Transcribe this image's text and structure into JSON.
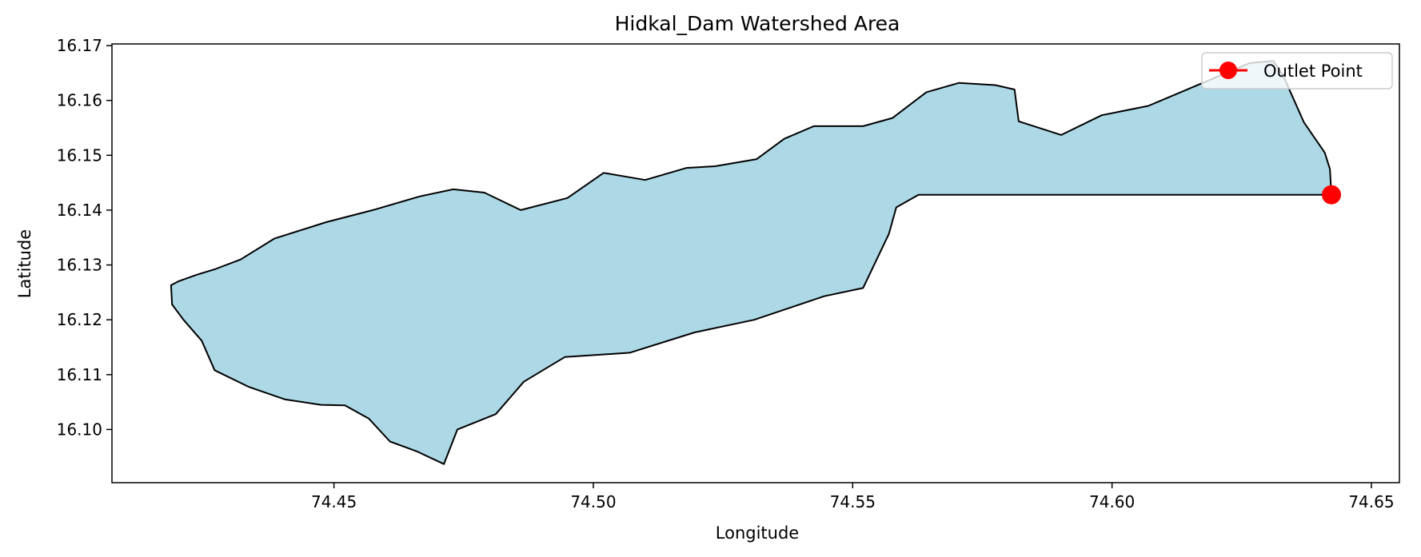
{
  "chart_data": {
    "type": "map",
    "title": "Hidkal_Dam Watershed Area",
    "xlabel": "Longitude",
    "ylabel": "Latitude",
    "xlim": [
      74.4072,
      74.6554
    ],
    "ylim": [
      16.0903,
      16.1703
    ],
    "grid": false,
    "legend_position": "top-right",
    "x_ticks": [
      "74.45",
      "74.50",
      "74.55",
      "74.60",
      "74.65"
    ],
    "x_tick_values": [
      74.45,
      74.5,
      74.55,
      74.6,
      74.65
    ],
    "y_ticks": [
      "16.10",
      "16.11",
      "16.12",
      "16.13",
      "16.14",
      "16.15",
      "16.16",
      "16.17"
    ],
    "y_tick_values": [
      16.1,
      16.11,
      16.12,
      16.13,
      16.14,
      16.15,
      16.16,
      16.17
    ],
    "watershed": {
      "fill": "#add8e6",
      "edge": "#000000",
      "boundary": [
        [
          74.4186,
          16.1263
        ],
        [
          74.4188,
          16.1228
        ],
        [
          74.421,
          16.12
        ],
        [
          74.4245,
          16.1162
        ],
        [
          74.427,
          16.1108
        ],
        [
          74.4335,
          16.1078
        ],
        [
          74.4405,
          16.1055
        ],
        [
          74.4475,
          16.1045
        ],
        [
          74.4521,
          16.1044
        ],
        [
          74.4567,
          16.102
        ],
        [
          74.4608,
          16.0978
        ],
        [
          74.466,
          16.096
        ],
        [
          74.4712,
          16.0937
        ],
        [
          74.4738,
          16.1
        ],
        [
          74.4812,
          16.1028
        ],
        [
          74.4866,
          16.1087
        ],
        [
          74.4945,
          16.1132
        ],
        [
          74.507,
          16.114
        ],
        [
          74.5195,
          16.1177
        ],
        [
          74.531,
          16.12
        ],
        [
          74.5445,
          16.1243
        ],
        [
          74.552,
          16.1258
        ],
        [
          74.557,
          16.1357
        ],
        [
          74.5584,
          16.1405
        ],
        [
          74.5627,
          16.1428
        ],
        [
          74.5695,
          16.1428
        ],
        [
          74.585,
          16.1428
        ],
        [
          74.605,
          16.1428
        ],
        [
          74.625,
          16.1428
        ],
        [
          74.6365,
          16.1428
        ],
        [
          74.6395,
          16.1428
        ],
        [
          74.6423,
          16.1428
        ],
        [
          74.642,
          16.1475
        ],
        [
          74.641,
          16.1505
        ],
        [
          74.637,
          16.156
        ],
        [
          74.633,
          16.1645
        ],
        [
          74.6311,
          16.1672
        ],
        [
          74.6265,
          16.1668
        ],
        [
          74.6175,
          16.1632
        ],
        [
          74.607,
          16.159
        ],
        [
          74.598,
          16.1573
        ],
        [
          74.5902,
          16.1537
        ],
        [
          74.582,
          16.1562
        ],
        [
          74.5812,
          16.162
        ],
        [
          74.5775,
          16.1628
        ],
        [
          74.5705,
          16.1632
        ],
        [
          74.5642,
          16.1615
        ],
        [
          74.5577,
          16.1568
        ],
        [
          74.552,
          16.1553
        ],
        [
          74.5425,
          16.1553
        ],
        [
          74.5368,
          16.153
        ],
        [
          74.5315,
          16.1493
        ],
        [
          74.5235,
          16.148
        ],
        [
          74.518,
          16.1477
        ],
        [
          74.51,
          16.1455
        ],
        [
          74.502,
          16.1468
        ],
        [
          74.495,
          16.1422
        ],
        [
          74.486,
          16.14
        ],
        [
          74.479,
          16.1432
        ],
        [
          74.473,
          16.1438
        ],
        [
          74.4665,
          16.1425
        ],
        [
          74.4575,
          16.14
        ],
        [
          74.4485,
          16.1378
        ],
        [
          74.4385,
          16.1348
        ],
        [
          74.432,
          16.131
        ],
        [
          74.427,
          16.1292
        ],
        [
          74.4235,
          16.1282
        ],
        [
          74.42,
          16.127
        ],
        [
          74.4186,
          16.1263
        ]
      ]
    },
    "series": [
      {
        "name": "Outlet Point",
        "color": "#ff0000",
        "marker": "circle",
        "x": [
          74.6423
        ],
        "y": [
          16.1428
        ]
      }
    ]
  }
}
